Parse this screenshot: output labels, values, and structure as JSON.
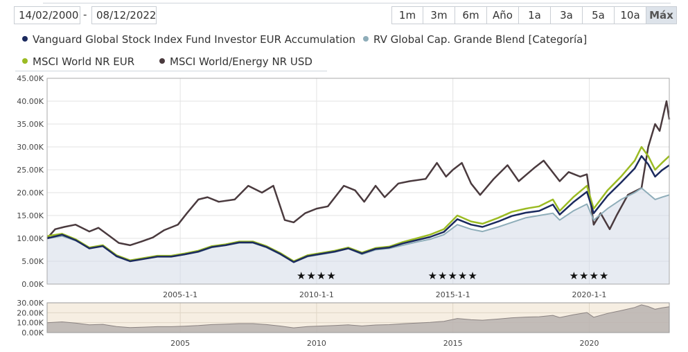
{
  "date_range": {
    "start": "14/02/2000",
    "separator": "-",
    "end": "08/12/2022"
  },
  "range_buttons": [
    {
      "label": "1m",
      "active": false
    },
    {
      "label": "3m",
      "active": false
    },
    {
      "label": "6m",
      "active": false
    },
    {
      "label": "Año",
      "active": false
    },
    {
      "label": "1a",
      "active": false
    },
    {
      "label": "3a",
      "active": false
    },
    {
      "label": "5a",
      "active": false
    },
    {
      "label": "10a",
      "active": false
    },
    {
      "label": "Máx",
      "active": true
    }
  ],
  "legend": [
    {
      "label": "Vanguard Global Stock Index Fund Investor EUR Accumulation",
      "color": "#1b2a5e"
    },
    {
      "label": "RV Global Cap. Grande Blend [Categoría]",
      "color": "#8eadb9"
    },
    {
      "label": "MSCI World NR EUR",
      "color": "#9bbb23"
    },
    {
      "label": "MSCI World/Energy NR USD",
      "color": "#4a3a3e"
    }
  ],
  "chart_data": {
    "type": "line",
    "x_axis": {
      "type": "date",
      "range": [
        "2000-02-14",
        "2022-12-08"
      ],
      "ticks": [
        "2005-01-01",
        "2010-01-01",
        "2015-01-01",
        "2020-01-01"
      ],
      "tick_labels": [
        "2005-1-1",
        "2010-1-1",
        "2015-1-1",
        "2020-1-1"
      ]
    },
    "y_axis": {
      "range": [
        0,
        45000
      ],
      "ticks": [
        0,
        5000,
        10000,
        15000,
        20000,
        25000,
        30000,
        35000,
        40000,
        45000
      ],
      "tick_labels": [
        "0.00K",
        "5.00K",
        "10.00K",
        "15.00K",
        "20.00K",
        "25.00K",
        "30.00K",
        "35.00K",
        "40.00K",
        "45.00K"
      ]
    },
    "grid": true,
    "series": [
      {
        "name": "MSCI World/Energy NR USD",
        "color": "#4a3a3e",
        "width": 2.5,
        "area": false,
        "points": [
          [
            "2000-02-14",
            10000
          ],
          [
            "2000-06-01",
            12000
          ],
          [
            "2000-10-01",
            12500
          ],
          [
            "2001-03-01",
            13000
          ],
          [
            "2001-09-01",
            11500
          ],
          [
            "2002-01-01",
            12300
          ],
          [
            "2002-06-01",
            10500
          ],
          [
            "2002-10-01",
            9000
          ],
          [
            "2003-03-01",
            8500
          ],
          [
            "2003-08-01",
            9300
          ],
          [
            "2004-01-01",
            10200
          ],
          [
            "2004-06-01",
            11800
          ],
          [
            "2004-12-01",
            13000
          ],
          [
            "2005-04-01",
            15500
          ],
          [
            "2005-09-01",
            18500
          ],
          [
            "2006-01-01",
            19000
          ],
          [
            "2006-06-01",
            18000
          ],
          [
            "2007-01-01",
            18500
          ],
          [
            "2007-07-01",
            21500
          ],
          [
            "2008-01-01",
            20000
          ],
          [
            "2008-06-01",
            21500
          ],
          [
            "2008-11-01",
            14000
          ],
          [
            "2009-03-01",
            13500
          ],
          [
            "2009-08-01",
            15500
          ],
          [
            "2010-01-01",
            16500
          ],
          [
            "2010-06-01",
            17000
          ],
          [
            "2011-01-01",
            21500
          ],
          [
            "2011-06-01",
            20500
          ],
          [
            "2011-10-01",
            18000
          ],
          [
            "2012-03-01",
            21500
          ],
          [
            "2012-07-01",
            19000
          ],
          [
            "2013-01-01",
            22000
          ],
          [
            "2013-06-01",
            22500
          ],
          [
            "2014-01-01",
            23000
          ],
          [
            "2014-06-01",
            26500
          ],
          [
            "2014-10-01",
            23500
          ],
          [
            "2015-01-01",
            25000
          ],
          [
            "2015-05-01",
            26500
          ],
          [
            "2015-09-01",
            22000
          ],
          [
            "2016-01-01",
            19500
          ],
          [
            "2016-07-01",
            23000
          ],
          [
            "2017-01-01",
            26000
          ],
          [
            "2017-06-01",
            22500
          ],
          [
            "2018-01-01",
            25500
          ],
          [
            "2018-05-01",
            27000
          ],
          [
            "2018-12-01",
            22500
          ],
          [
            "2019-04-01",
            24500
          ],
          [
            "2019-09-01",
            23500
          ],
          [
            "2019-12-01",
            24000
          ],
          [
            "2020-03-01",
            13000
          ],
          [
            "2020-06-01",
            15500
          ],
          [
            "2020-10-01",
            12000
          ],
          [
            "2021-01-01",
            15000
          ],
          [
            "2021-06-01",
            19500
          ],
          [
            "2021-12-01",
            21000
          ],
          [
            "2022-03-01",
            30000
          ],
          [
            "2022-06-01",
            35000
          ],
          [
            "2022-08-01",
            33500
          ],
          [
            "2022-11-01",
            40000
          ],
          [
            "2022-12-08",
            36000
          ]
        ]
      },
      {
        "name": "RV Global Cap. Grande Blend [Categoría]",
        "color": "#8eadb9",
        "width": 2,
        "area": true,
        "points": [
          [
            "2000-02-14",
            10000
          ],
          [
            "2000-09-01",
            10500
          ],
          [
            "2001-03-01",
            9500
          ],
          [
            "2001-09-01",
            8000
          ],
          [
            "2002-03-01",
            8500
          ],
          [
            "2002-09-01",
            6000
          ],
          [
            "2003-03-01",
            5000
          ],
          [
            "2003-09-01",
            5500
          ],
          [
            "2004-03-01",
            6000
          ],
          [
            "2004-09-01",
            6000
          ],
          [
            "2005-03-01",
            6500
          ],
          [
            "2005-09-01",
            7000
          ],
          [
            "2006-03-01",
            8000
          ],
          [
            "2006-09-01",
            8500
          ],
          [
            "2007-03-01",
            9000
          ],
          [
            "2007-09-01",
            9000
          ],
          [
            "2008-03-01",
            8000
          ],
          [
            "2008-09-01",
            6500
          ],
          [
            "2009-03-01",
            4800
          ],
          [
            "2009-09-01",
            6000
          ],
          [
            "2010-03-01",
            6500
          ],
          [
            "2010-09-01",
            7000
          ],
          [
            "2011-03-01",
            7800
          ],
          [
            "2011-09-01",
            6500
          ],
          [
            "2012-03-01",
            7500
          ],
          [
            "2012-09-01",
            7800
          ],
          [
            "2013-03-01",
            8500
          ],
          [
            "2013-09-01",
            9200
          ],
          [
            "2014-03-01",
            9800
          ],
          [
            "2014-09-01",
            10800
          ],
          [
            "2015-03-01",
            13000
          ],
          [
            "2015-09-01",
            12000
          ],
          [
            "2016-02-01",
            11500
          ],
          [
            "2016-09-01",
            12500
          ],
          [
            "2017-03-01",
            13500
          ],
          [
            "2017-09-01",
            14500
          ],
          [
            "2018-03-01",
            15000
          ],
          [
            "2018-09-01",
            15500
          ],
          [
            "2018-12-01",
            14000
          ],
          [
            "2019-06-01",
            16000
          ],
          [
            "2019-12-01",
            17500
          ],
          [
            "2020-03-01",
            14000
          ],
          [
            "2020-09-01",
            16500
          ],
          [
            "2021-03-01",
            18500
          ],
          [
            "2021-09-01",
            20000
          ],
          [
            "2021-12-01",
            21000
          ],
          [
            "2022-06-01",
            18500
          ],
          [
            "2022-09-01",
            19000
          ],
          [
            "2022-12-08",
            19500
          ]
        ]
      },
      {
        "name": "MSCI World NR EUR",
        "color": "#9bbb23",
        "width": 2.5,
        "area": false,
        "points": [
          [
            "2000-02-14",
            10500
          ],
          [
            "2000-09-01",
            11000
          ],
          [
            "2001-03-01",
            9800
          ],
          [
            "2001-09-01",
            8000
          ],
          [
            "2002-03-01",
            8500
          ],
          [
            "2002-09-01",
            6300
          ],
          [
            "2003-03-01",
            5200
          ],
          [
            "2003-09-01",
            5700
          ],
          [
            "2004-03-01",
            6200
          ],
          [
            "2004-09-01",
            6200
          ],
          [
            "2005-03-01",
            6700
          ],
          [
            "2005-09-01",
            7300
          ],
          [
            "2006-03-01",
            8300
          ],
          [
            "2006-09-01",
            8700
          ],
          [
            "2007-03-01",
            9300
          ],
          [
            "2007-09-01",
            9300
          ],
          [
            "2008-03-01",
            8300
          ],
          [
            "2008-09-01",
            6800
          ],
          [
            "2009-03-01",
            5000
          ],
          [
            "2009-09-01",
            6300
          ],
          [
            "2010-03-01",
            6800
          ],
          [
            "2010-09-01",
            7300
          ],
          [
            "2011-03-01",
            8000
          ],
          [
            "2011-09-01",
            6900
          ],
          [
            "2012-03-01",
            7900
          ],
          [
            "2012-09-01",
            8200
          ],
          [
            "2013-03-01",
            9200
          ],
          [
            "2013-09-01",
            10000
          ],
          [
            "2014-03-01",
            10800
          ],
          [
            "2014-09-01",
            12000
          ],
          [
            "2015-03-01",
            15000
          ],
          [
            "2015-09-01",
            13700
          ],
          [
            "2016-02-01",
            13200
          ],
          [
            "2016-09-01",
            14500
          ],
          [
            "2017-03-01",
            15800
          ],
          [
            "2017-09-01",
            16500
          ],
          [
            "2018-03-01",
            17000
          ],
          [
            "2018-09-01",
            18500
          ],
          [
            "2018-12-01",
            16000
          ],
          [
            "2019-06-01",
            19000
          ],
          [
            "2019-12-01",
            21500
          ],
          [
            "2020-03-01",
            16500
          ],
          [
            "2020-09-01",
            20500
          ],
          [
            "2021-03-01",
            23500
          ],
          [
            "2021-09-01",
            27000
          ],
          [
            "2021-12-01",
            30000
          ],
          [
            "2022-03-01",
            28000
          ],
          [
            "2022-06-01",
            25000
          ],
          [
            "2022-09-01",
            26500
          ],
          [
            "2022-12-08",
            28000
          ]
        ]
      },
      {
        "name": "Vanguard Global Stock Index Fund Investor EUR Accumulation",
        "color": "#1b2a5e",
        "width": 2.5,
        "area": false,
        "points": [
          [
            "2000-02-14",
            10000
          ],
          [
            "2000-09-01",
            10800
          ],
          [
            "2001-03-01",
            9600
          ],
          [
            "2001-09-01",
            7800
          ],
          [
            "2002-03-01",
            8300
          ],
          [
            "2002-09-01",
            6100
          ],
          [
            "2003-03-01",
            5000
          ],
          [
            "2003-09-01",
            5500
          ],
          [
            "2004-03-01",
            6000
          ],
          [
            "2004-09-01",
            6000
          ],
          [
            "2005-03-01",
            6500
          ],
          [
            "2005-09-01",
            7100
          ],
          [
            "2006-03-01",
            8100
          ],
          [
            "2006-09-01",
            8500
          ],
          [
            "2007-03-01",
            9100
          ],
          [
            "2007-09-01",
            9100
          ],
          [
            "2008-03-01",
            8100
          ],
          [
            "2008-09-01",
            6600
          ],
          [
            "2009-03-01",
            4800
          ],
          [
            "2009-09-01",
            6100
          ],
          [
            "2010-03-01",
            6600
          ],
          [
            "2010-09-01",
            7100
          ],
          [
            "2011-03-01",
            7800
          ],
          [
            "2011-09-01",
            6700
          ],
          [
            "2012-03-01",
            7700
          ],
          [
            "2012-09-01",
            8000
          ],
          [
            "2013-03-01",
            8900
          ],
          [
            "2013-09-01",
            9600
          ],
          [
            "2014-03-01",
            10300
          ],
          [
            "2014-09-01",
            11400
          ],
          [
            "2015-03-01",
            14200
          ],
          [
            "2015-09-01",
            13000
          ],
          [
            "2016-02-01",
            12500
          ],
          [
            "2016-09-01",
            13700
          ],
          [
            "2017-03-01",
            14900
          ],
          [
            "2017-09-01",
            15600
          ],
          [
            "2018-03-01",
            16000
          ],
          [
            "2018-09-01",
            17400
          ],
          [
            "2018-12-01",
            15200
          ],
          [
            "2019-06-01",
            17900
          ],
          [
            "2019-12-01",
            20200
          ],
          [
            "2020-03-01",
            15500
          ],
          [
            "2020-09-01",
            19300
          ],
          [
            "2021-03-01",
            22200
          ],
          [
            "2021-09-01",
            25300
          ],
          [
            "2021-12-01",
            28000
          ],
          [
            "2022-03-01",
            26200
          ],
          [
            "2022-06-01",
            23500
          ],
          [
            "2022-09-01",
            24900
          ],
          [
            "2022-12-08",
            26000
          ]
        ]
      }
    ],
    "rating_annotations": [
      {
        "date": "2010-01-01",
        "stars": "★★★★"
      },
      {
        "date": "2015-01-01",
        "stars": "★★★★★"
      },
      {
        "date": "2020-01-01",
        "stars": "★★★★"
      }
    ],
    "navigator": {
      "y_ticks": [
        0,
        10000,
        20000,
        30000
      ],
      "y_tick_labels": [
        "0.00K",
        "10.00K",
        "20.00K",
        "30.00K"
      ],
      "x_ticks": [
        "2005-01-01",
        "2010-01-01",
        "2015-01-01",
        "2020-01-01"
      ],
      "x_tick_labels": [
        "2005",
        "2010",
        "2015",
        "2020"
      ],
      "series_name": "Vanguard Global Stock Index Fund Investor EUR Accumulation",
      "selected": [
        "2000-02-14",
        "2022-12-08"
      ]
    }
  }
}
